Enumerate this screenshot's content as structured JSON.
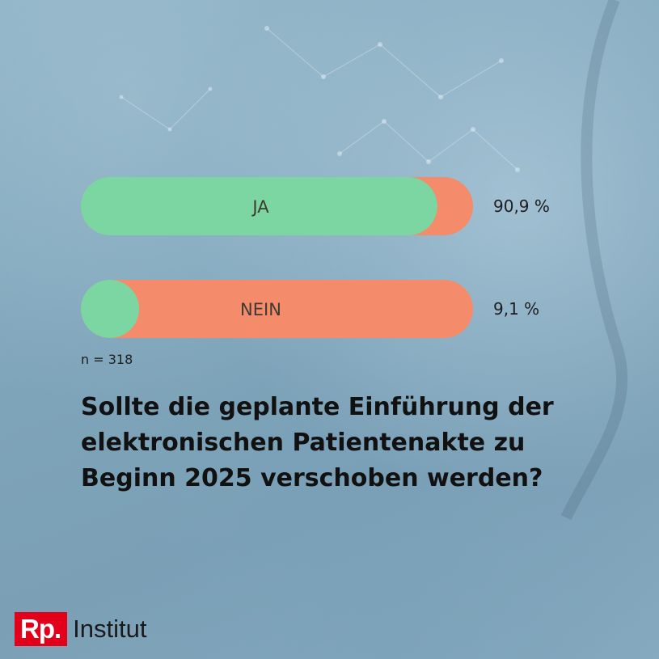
{
  "chart_data": {
    "type": "bar",
    "orientation": "horizontal",
    "categories": [
      "JA",
      "NEIN"
    ],
    "values": [
      90.9,
      9.1
    ],
    "value_labels": [
      "90,9 %",
      "9,1 %"
    ],
    "ylim": [
      0,
      100
    ],
    "colors": {
      "share": "#7bd6a1",
      "remainder": "#f48c6b"
    }
  },
  "sample_note": "n = 318",
  "question": "Sollte die geplante Einführung der elektronischen Patientenakte zu Beginn 2025 verschoben werden?",
  "brand": {
    "mark": "Rp.",
    "name": "Institut"
  }
}
